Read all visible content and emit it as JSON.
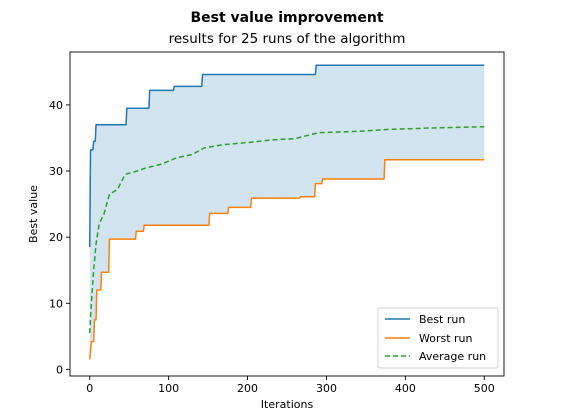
{
  "chart_data": {
    "type": "line",
    "title": "Best value improvement",
    "subtitle": "results for 25 runs of the algorithm",
    "xlabel": "Iterations",
    "ylabel": "Best value",
    "xlim": [
      -25,
      525
    ],
    "ylim": [
      -1,
      48
    ],
    "xticks": [
      0,
      100,
      200,
      300,
      400,
      500
    ],
    "yticks": [
      0,
      10,
      20,
      30,
      40
    ],
    "grid": false,
    "legend_position": "lower-right",
    "fill_between": {
      "lower": "Worst run",
      "upper": "Best run",
      "color": "#1f77b4",
      "alpha": 0.2
    },
    "series": [
      {
        "name": "Best run",
        "color": "#1f77b4",
        "style": "solid",
        "points": [
          [
            0,
            18.5
          ],
          [
            1,
            33.2
          ],
          [
            4,
            33.2
          ],
          [
            5,
            34.5
          ],
          [
            7,
            34.5
          ],
          [
            8,
            37
          ],
          [
            46,
            37
          ],
          [
            47,
            39.5
          ],
          [
            75,
            39.5
          ],
          [
            76,
            42.2
          ],
          [
            106,
            42.2
          ],
          [
            107,
            42.8
          ],
          [
            142,
            42.8
          ],
          [
            143,
            44.6
          ],
          [
            286,
            44.6
          ],
          [
            287,
            46
          ],
          [
            500,
            46
          ]
        ]
      },
      {
        "name": "Worst run",
        "color": "#ff7f0e",
        "style": "solid",
        "points": [
          [
            0,
            1.5
          ],
          [
            2,
            4.2
          ],
          [
            5,
            4.2
          ],
          [
            6,
            7.5
          ],
          [
            8,
            7.5
          ],
          [
            9,
            12
          ],
          [
            14,
            12
          ],
          [
            15,
            14.7
          ],
          [
            24,
            14.7
          ],
          [
            25,
            19.7
          ],
          [
            58,
            19.7
          ],
          [
            59,
            20.9
          ],
          [
            68,
            20.9
          ],
          [
            69,
            21.8
          ],
          [
            151,
            21.8
          ],
          [
            152,
            23.6
          ],
          [
            175,
            23.6
          ],
          [
            176,
            24.5
          ],
          [
            204,
            24.5
          ],
          [
            205,
            25.9
          ],
          [
            266,
            25.9
          ],
          [
            267,
            26.1
          ],
          [
            285,
            26.1
          ],
          [
            286,
            28.1
          ],
          [
            294,
            28.1
          ],
          [
            295,
            28.8
          ],
          [
            373,
            28.8
          ],
          [
            374,
            31.7
          ],
          [
            500,
            31.7
          ]
        ]
      },
      {
        "name": "Average run",
        "color": "#2ca02c",
        "style": "dashed",
        "points": [
          [
            0,
            5.5
          ],
          [
            2,
            10
          ],
          [
            5,
            15
          ],
          [
            8,
            19
          ],
          [
            12,
            22
          ],
          [
            18,
            23.5
          ],
          [
            25,
            26.5
          ],
          [
            35,
            27.2
          ],
          [
            45,
            29.5
          ],
          [
            60,
            30
          ],
          [
            72,
            30.5
          ],
          [
            90,
            31
          ],
          [
            110,
            32
          ],
          [
            130,
            32.5
          ],
          [
            145,
            33.5
          ],
          [
            170,
            34
          ],
          [
            200,
            34.3
          ],
          [
            230,
            34.7
          ],
          [
            260,
            34.9
          ],
          [
            290,
            35.8
          ],
          [
            340,
            36
          ],
          [
            380,
            36.3
          ],
          [
            430,
            36.5
          ],
          [
            500,
            36.7
          ]
        ]
      }
    ]
  }
}
